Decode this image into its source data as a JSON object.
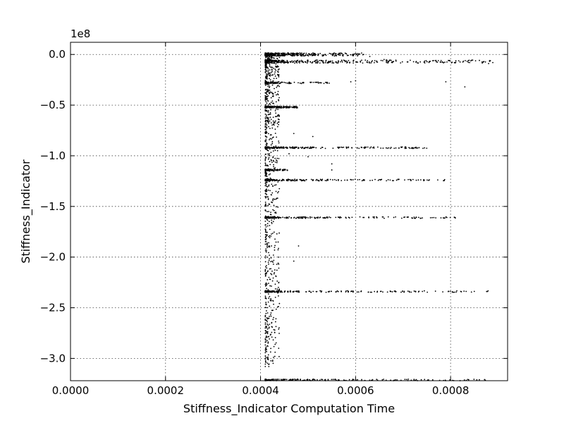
{
  "chart_data": {
    "type": "scatter",
    "title": "",
    "xlabel": "Stiffness_Indicator Computation Time",
    "ylabel": "Stiffness_Indicator",
    "y_offset_label": "1e8",
    "xlim": [
      0.0,
      0.00092
    ],
    "ylim": [
      -3.22,
      0.12
    ],
    "y_scale_exponent": 8,
    "grid": true,
    "x_ticks": [
      {
        "value": 0.0,
        "label": "0.0000"
      },
      {
        "value": 0.0002,
        "label": "0.0002"
      },
      {
        "value": 0.0004,
        "label": "0.0004"
      },
      {
        "value": 0.0006,
        "label": "0.0006"
      },
      {
        "value": 0.0008,
        "label": "0.0008"
      }
    ],
    "y_ticks": [
      {
        "value": 0.0,
        "label": "0.0"
      },
      {
        "value": -0.5,
        "label": "−0.5"
      },
      {
        "value": -1.0,
        "label": "−1.0"
      },
      {
        "value": -1.5,
        "label": "−1.5"
      },
      {
        "value": -2.0,
        "label": "−2.0"
      },
      {
        "value": -2.5,
        "label": "−2.5"
      },
      {
        "value": -3.0,
        "label": "−3.0"
      }
    ],
    "point_color": "#000000",
    "marker": "small dot",
    "clusters": [
      {
        "y": 0.0,
        "x_min": 0.00041,
        "x_max": 0.00062,
        "density": "very high"
      },
      {
        "y": -0.07,
        "x_min": 0.00041,
        "x_max": 0.00089,
        "density": "very high"
      },
      {
        "y": -0.28,
        "x_min": 0.00041,
        "x_max": 0.00055,
        "density": "medium"
      },
      {
        "y": -0.52,
        "x_min": 0.00041,
        "x_max": 0.00048,
        "density": "high"
      },
      {
        "y": -0.92,
        "x_min": 0.00041,
        "x_max": 0.00075,
        "density": "high"
      },
      {
        "y": -1.14,
        "x_min": 0.00041,
        "x_max": 0.00046,
        "density": "medium"
      },
      {
        "y": -1.24,
        "x_min": 0.00041,
        "x_max": 0.00079,
        "density": "high"
      },
      {
        "y": -1.61,
        "x_min": 0.00041,
        "x_max": 0.00082,
        "density": "high"
      },
      {
        "y": -2.34,
        "x_min": 0.00041,
        "x_max": 0.00088,
        "density": "high"
      },
      {
        "y": -3.22,
        "x_min": 0.00041,
        "x_max": 0.00089,
        "density": "very high"
      }
    ],
    "vertical_band": {
      "x_min": 0.00041,
      "x_max": 0.00044,
      "y_min": -3.1,
      "y_max": 0.0
    },
    "outliers": [
      {
        "x": 0.00063,
        "y": -0.02
      },
      {
        "x": 0.00066,
        "y": -0.05
      },
      {
        "x": 0.00068,
        "y": -0.07
      },
      {
        "x": 0.00078,
        "y": -0.06
      },
      {
        "x": 0.00084,
        "y": -0.08
      },
      {
        "x": 0.00087,
        "y": -0.07
      },
      {
        "x": 0.00088,
        "y": -0.09
      },
      {
        "x": 0.00083,
        "y": -0.32
      },
      {
        "x": 0.00079,
        "y": -0.27
      },
      {
        "x": 0.00059,
        "y": -0.27
      },
      {
        "x": 0.0006,
        "y": -0.26
      },
      {
        "x": 0.00051,
        "y": -0.81
      },
      {
        "x": 0.00047,
        "y": -0.78
      },
      {
        "x": 0.00046,
        "y": -0.98
      },
      {
        "x": 0.0005,
        "y": -1.01
      },
      {
        "x": 0.00055,
        "y": -1.08
      },
      {
        "x": 0.00055,
        "y": -1.14
      },
      {
        "x": 0.00048,
        "y": -1.89
      },
      {
        "x": 0.00047,
        "y": -2.04
      },
      {
        "x": 0.00043,
        "y": -1.43
      },
      {
        "x": 0.00041,
        "y": -2.84
      },
      {
        "x": 0.00041,
        "y": -3.08
      },
      {
        "x": 0.00043,
        "y": -2.98
      },
      {
        "x": 0.00043,
        "y": -2.72
      }
    ]
  }
}
